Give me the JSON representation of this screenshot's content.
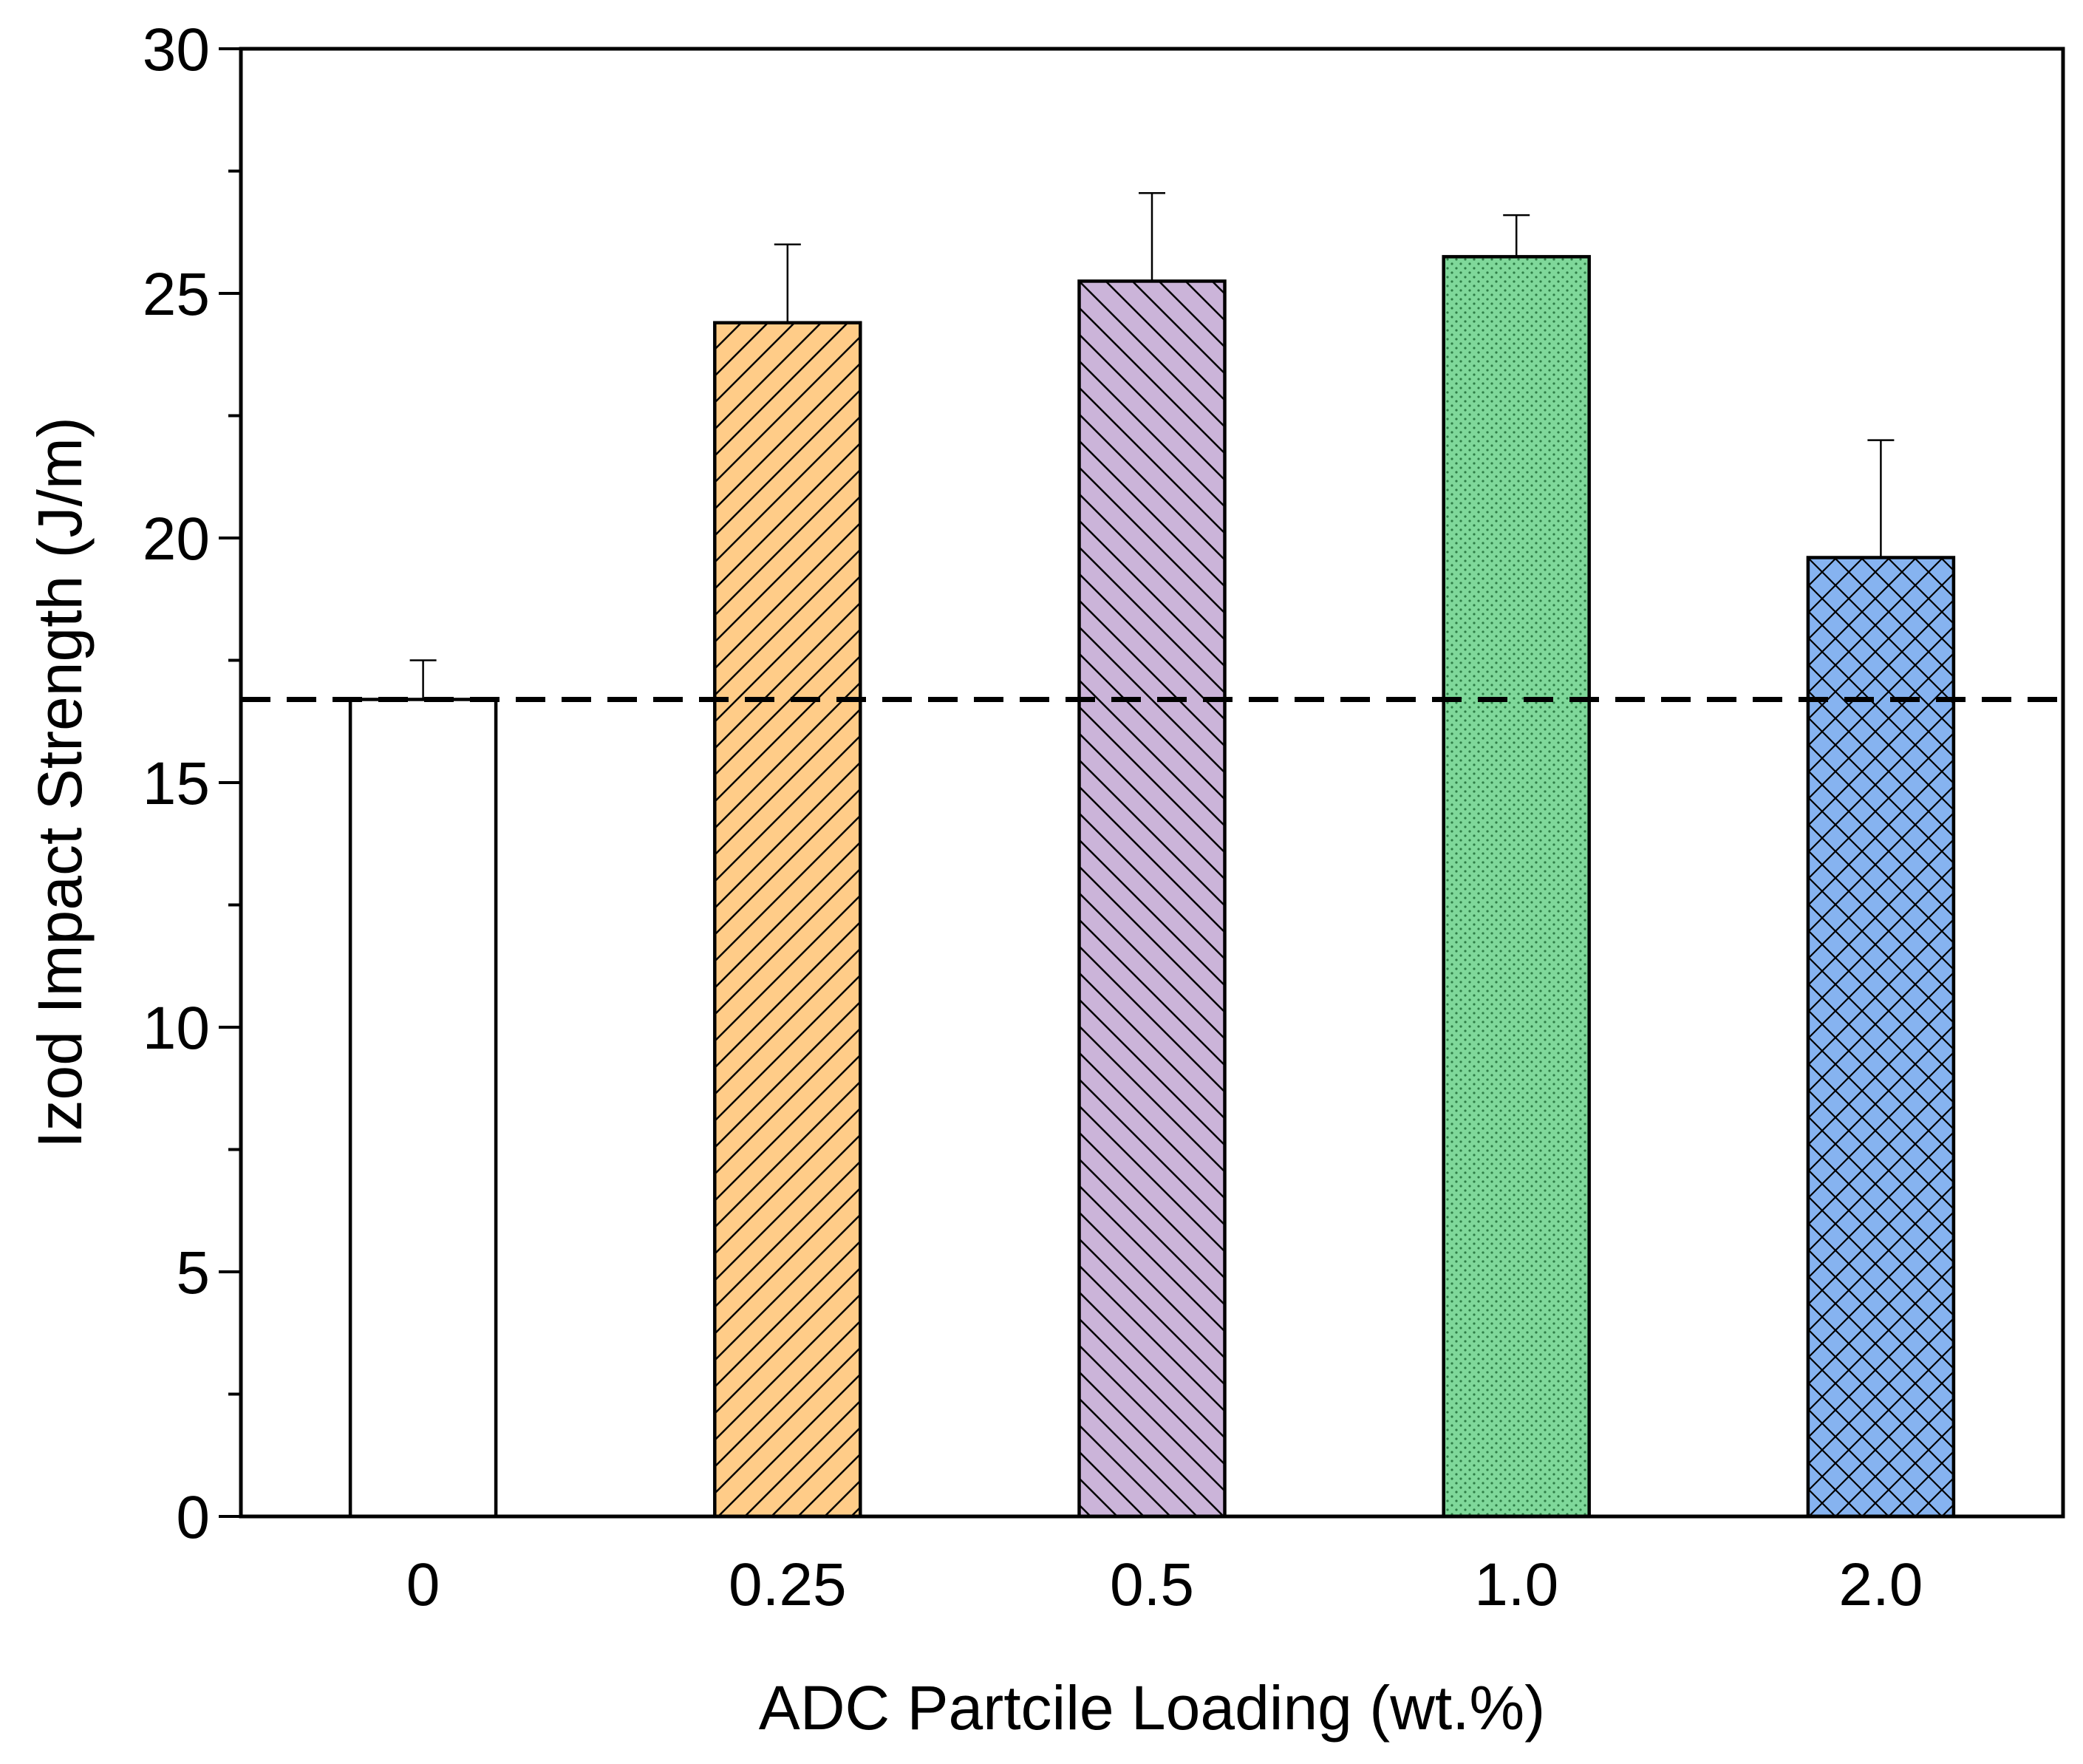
{
  "chart_data": {
    "type": "bar",
    "title": "",
    "xlabel": "ADC Partcile Loading (wt.%)",
    "ylabel": "Izod Impact Strength (J/m)",
    "categories": [
      "0",
      "0.25",
      "0.5",
      "1.0",
      "2.0"
    ],
    "values": [
      16.7,
      24.4,
      25.25,
      25.75,
      19.6
    ],
    "error_plus": [
      0.8,
      1.6,
      1.8,
      0.85,
      2.4
    ],
    "ylim": [
      0,
      30
    ],
    "y_ticks": [
      "0",
      "5",
      "10",
      "15",
      "20",
      "25",
      "30"
    ],
    "y_minor_step": 2.5,
    "reference_line": {
      "value": 16.7,
      "style": "dashed"
    },
    "bar_styles": [
      {
        "fill": "#ffffff",
        "pattern": "none"
      },
      {
        "fill": "#FFCC88",
        "pattern": "forward-diagonal"
      },
      {
        "fill": "#CBB4D9",
        "pattern": "backward-diagonal"
      },
      {
        "fill": "#7FD89A",
        "pattern": "dots"
      },
      {
        "fill": "#86B3F0",
        "pattern": "crosshatch"
      }
    ],
    "grid": false,
    "legend": "none"
  }
}
